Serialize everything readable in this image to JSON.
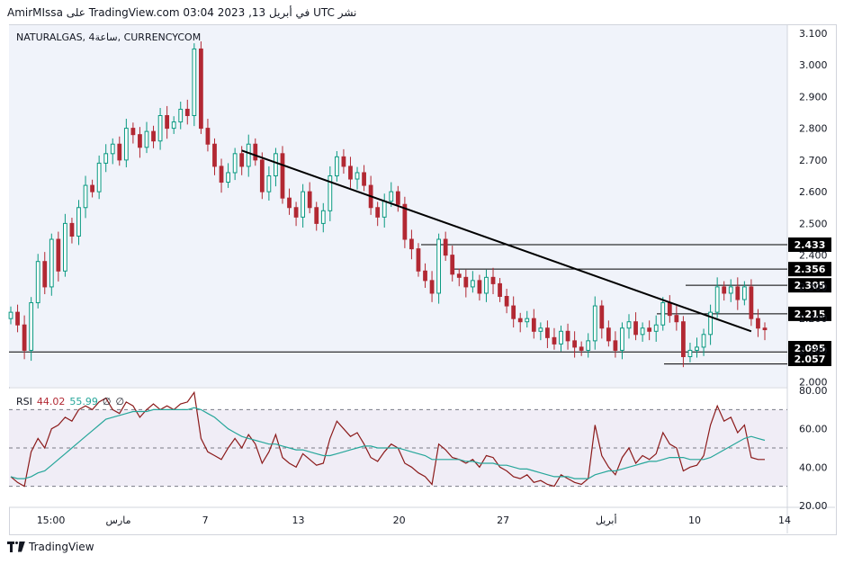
{
  "header": {
    "text": "AmirMIssa على TradingView.com 03:04 2023 ,13 في أبريل UTC نشر"
  },
  "symbol": {
    "text": "NATURALGAS, 4ساعة, CURRENCYCOM"
  },
  "rsi": {
    "name": "RSI",
    "value1": "44.02",
    "value2": "55.99",
    "flag1": "∅",
    "flag2": "∅"
  },
  "footer": {
    "brand": "TradingView"
  },
  "colors": {
    "up": "#089981",
    "down": "#b22833",
    "rsi": "#8b1a1a",
    "rsi_ma": "#26a69a",
    "trendline": "#000000",
    "level": "#000000"
  },
  "chart_data": [
    {
      "type": "candlestick",
      "title": "NATURALGAS, 4ساعة, CURRENCYCOM",
      "y_ticks": [
        "3.100",
        "3.000",
        "2.900",
        "2.800",
        "2.700",
        "2.600",
        "2.500",
        "2.400",
        "2.300",
        "2.200",
        "2.100",
        "2.000"
      ],
      "ylim": [
        1.985,
        3.125
      ],
      "x_ticks": [
        "15:00",
        "مارس",
        "7",
        "13",
        "20",
        "27",
        "أبريل",
        "10",
        "14"
      ],
      "levels": [
        {
          "label": "2.433",
          "value": 2.433
        },
        {
          "label": "2.356",
          "value": 2.356
        },
        {
          "label": "2.305",
          "value": 2.305
        },
        {
          "label": "2.215",
          "value": 2.215
        },
        {
          "label": "2.095",
          "value": 2.095
        },
        {
          "label": "2.057",
          "value": 2.057
        }
      ],
      "trendline": {
        "from": 2.73,
        "to": 2.16
      },
      "closes": [
        2.22,
        2.18,
        2.1,
        2.25,
        2.38,
        2.3,
        2.45,
        2.35,
        2.5,
        2.46,
        2.55,
        2.62,
        2.6,
        2.69,
        2.72,
        2.75,
        2.7,
        2.8,
        2.78,
        2.74,
        2.79,
        2.76,
        2.84,
        2.8,
        2.82,
        2.86,
        2.84,
        3.05,
        2.8,
        2.75,
        2.68,
        2.63,
        2.66,
        2.72,
        2.68,
        2.75,
        2.7,
        2.6,
        2.65,
        2.72,
        2.58,
        2.55,
        2.52,
        2.6,
        2.55,
        2.5,
        2.54,
        2.65,
        2.71,
        2.68,
        2.64,
        2.66,
        2.62,
        2.55,
        2.52,
        2.57,
        2.6,
        2.56,
        2.45,
        2.42,
        2.35,
        2.32,
        2.28,
        2.45,
        2.4,
        2.34,
        2.33,
        2.3,
        2.32,
        2.28,
        2.33,
        2.31,
        2.27,
        2.24,
        2.2,
        2.19,
        2.2,
        2.16,
        2.17,
        2.14,
        2.12,
        2.16,
        2.13,
        2.11,
        2.1,
        2.13,
        2.24,
        2.17,
        2.13,
        2.1,
        2.17,
        2.19,
        2.15,
        2.17,
        2.16,
        2.18,
        2.25,
        2.21,
        2.19,
        2.08,
        2.1,
        2.11,
        2.15,
        2.22,
        2.3,
        2.28,
        2.3,
        2.26,
        2.3,
        2.2,
        2.17,
        2.165
      ]
    },
    {
      "type": "line",
      "title": "RSI",
      "y_ticks": [
        "80.00",
        "60.00",
        "40.00",
        "20.00"
      ],
      "ylim": [
        19,
        81
      ],
      "bands": [
        70,
        50,
        30
      ],
      "series": [
        {
          "name": "",
          "values": [
            35,
            32,
            30,
            48,
            55,
            50,
            60,
            62,
            66,
            64,
            70,
            72,
            70,
            74,
            76,
            70,
            68,
            74,
            72,
            66,
            70,
            73,
            70,
            72,
            70,
            73,
            74,
            79,
            55,
            48,
            46,
            44,
            50,
            55,
            50,
            57,
            52,
            42,
            48,
            57,
            45,
            42,
            40,
            47,
            44,
            41,
            42,
            55,
            64,
            60,
            56,
            58,
            52,
            45,
            43,
            48,
            52,
            50,
            42,
            40,
            37,
            35,
            31,
            52,
            49,
            45,
            44,
            42,
            44,
            40,
            46,
            45,
            40,
            38,
            35,
            34,
            36,
            32,
            33,
            31,
            30,
            36,
            34,
            32,
            31,
            34,
            62,
            46,
            40,
            36,
            45,
            50,
            42,
            46,
            44,
            47,
            58,
            52,
            50,
            38,
            40,
            41,
            46,
            62,
            72,
            64,
            66,
            58,
            62,
            45,
            44,
            44
          ]
        },
        {
          "name": "",
          "values": [
            35,
            34,
            34,
            35,
            37,
            38,
            41,
            44,
            47,
            50,
            53,
            56,
            59,
            62,
            65,
            66,
            67,
            68,
            69,
            69,
            69,
            70,
            70,
            70,
            70,
            70,
            70,
            71,
            70,
            68,
            66,
            63,
            60,
            58,
            56,
            55,
            54,
            53,
            52,
            52,
            51,
            50,
            49,
            49,
            48,
            47,
            46,
            46,
            47,
            48,
            49,
            50,
            51,
            51,
            50,
            50,
            50,
            50,
            49,
            48,
            47,
            46,
            44,
            44,
            44,
            44,
            44,
            43,
            43,
            42,
            42,
            42,
            41,
            41,
            40,
            39,
            39,
            38,
            37,
            36,
            35,
            35,
            35,
            34,
            34,
            34,
            36,
            37,
            38,
            38,
            39,
            40,
            41,
            42,
            43,
            43,
            44,
            45,
            45,
            45,
            44,
            44,
            44,
            45,
            47,
            49,
            51,
            53,
            55,
            56,
            55,
            54
          ]
        }
      ]
    }
  ]
}
